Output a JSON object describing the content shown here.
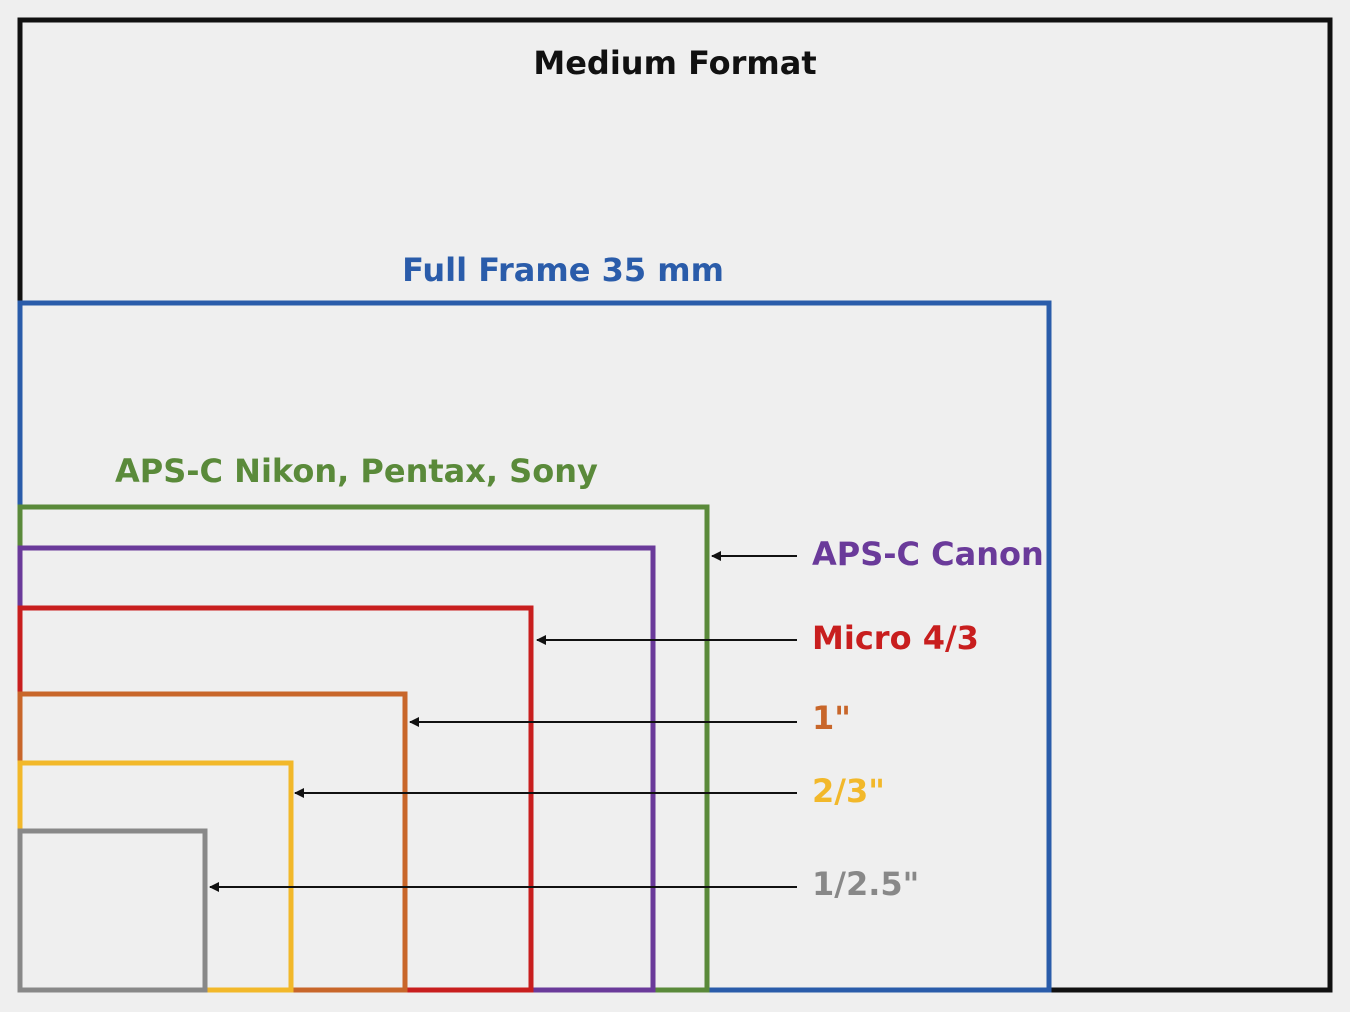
{
  "title": "Medium Format",
  "sensors": [
    {
      "label": "Medium Format",
      "color": "#111111"
    },
    {
      "label": "Full Frame 35 mm",
      "color": "#2a5caa"
    },
    {
      "label": "APS-C Nikon, Pentax, Sony",
      "color": "#5a8a3a"
    },
    {
      "label": "APS-C Canon",
      "color": "#6a3a9a"
    },
    {
      "label": "Micro 4/3",
      "color": "#c81e1e"
    },
    {
      "label": "1\"",
      "color": "#c8662a"
    },
    {
      "label": "2/3\"",
      "color": "#f2b82a"
    },
    {
      "label": "1/2.5\"",
      "color": "#888888"
    }
  ]
}
